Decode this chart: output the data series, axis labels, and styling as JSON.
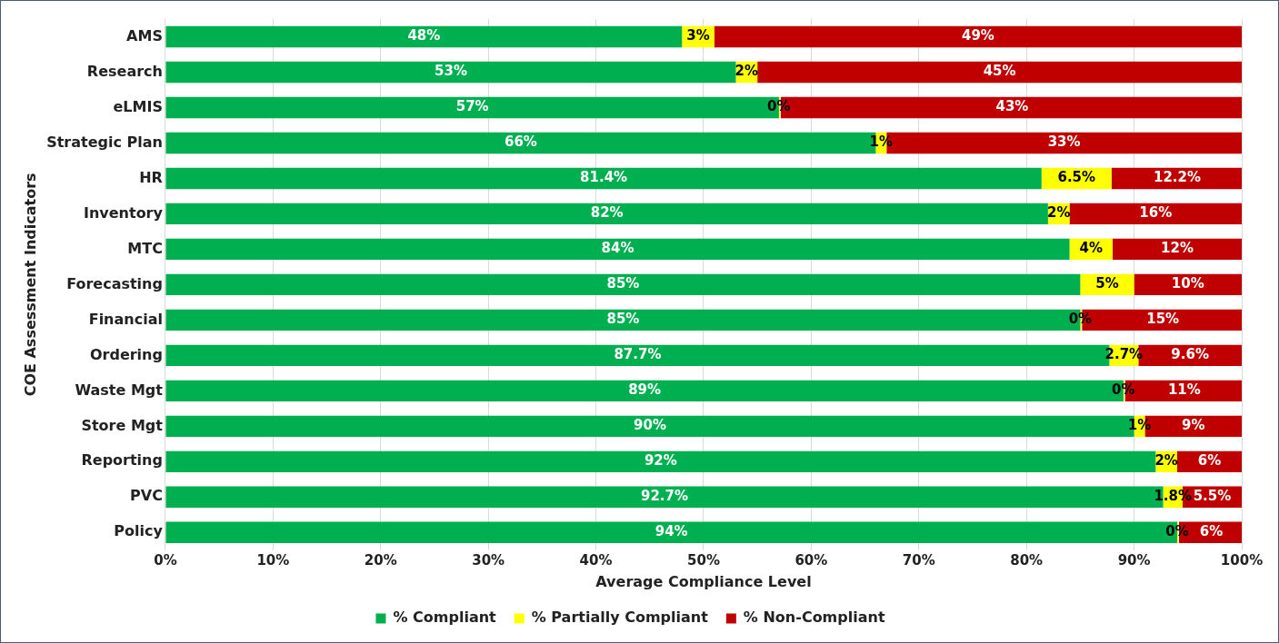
{
  "chart_data": {
    "type": "bar",
    "orientation": "horizontal",
    "stacked": true,
    "xlabel": "Average Compliance Level",
    "ylabel": "COE Assessment Indicators",
    "categories": [
      "AMS",
      "Research",
      "eLMIS",
      "Strategic Plan",
      "HR",
      "Inventory",
      "MTC",
      "Forecasting",
      "Financial",
      "Ordering",
      "Waste Mgt",
      "Store Mgt",
      "Reporting",
      "PVC",
      "Policy"
    ],
    "series": [
      {
        "name": "% Compliant",
        "color": "#00b050",
        "values": [
          48,
          53,
          57,
          66,
          81.4,
          82,
          84,
          85,
          85,
          87.7,
          89,
          90,
          92,
          92.7,
          94
        ],
        "value_labels": [
          "48%",
          "53%",
          "57%",
          "66%",
          "81.4%",
          "82%",
          "84%",
          "85%",
          "85%",
          "87.7%",
          "89%",
          "90%",
          "92%",
          "92.7%",
          "94%"
        ]
      },
      {
        "name": "% Partially Compliant",
        "color": "#ffff00",
        "values": [
          3,
          2,
          0,
          1,
          6.5,
          2,
          4,
          5,
          0,
          2.7,
          0,
          1,
          2,
          1.8,
          0
        ],
        "value_labels": [
          "3%",
          "2%",
          "0%",
          "1%",
          "6.5%",
          "2%",
          "4%",
          "5%",
          "0%",
          "2.7%",
          "0%",
          "1%",
          "2%",
          "1.8%",
          "0%"
        ]
      },
      {
        "name": "% Non-Compliant",
        "color": "#c00000",
        "values": [
          49,
          45,
          43,
          33,
          12.2,
          16,
          12,
          10,
          15,
          9.6,
          11,
          9,
          6,
          5.5,
          6
        ],
        "value_labels": [
          "49%",
          "45%",
          "43%",
          "33%",
          "12.2%",
          "16%",
          "12%",
          "10%",
          "15%",
          "9.6%",
          "11%",
          "9%",
          "6%",
          "5.5%",
          "6%"
        ]
      }
    ],
    "xlim": [
      0,
      100
    ],
    "xticks": [
      {
        "value": 0,
        "label": "0%"
      },
      {
        "value": 10,
        "label": "10%"
      },
      {
        "value": 20,
        "label": "20%"
      },
      {
        "value": 30,
        "label": "30%"
      },
      {
        "value": 40,
        "label": "40%"
      },
      {
        "value": 50,
        "label": "50%"
      },
      {
        "value": 60,
        "label": "60%"
      },
      {
        "value": 70,
        "label": "70%"
      },
      {
        "value": 80,
        "label": "80%"
      },
      {
        "value": 90,
        "label": "90%"
      },
      {
        "value": 100,
        "label": "100%"
      }
    ],
    "grid": "x",
    "legend": "bottom"
  }
}
